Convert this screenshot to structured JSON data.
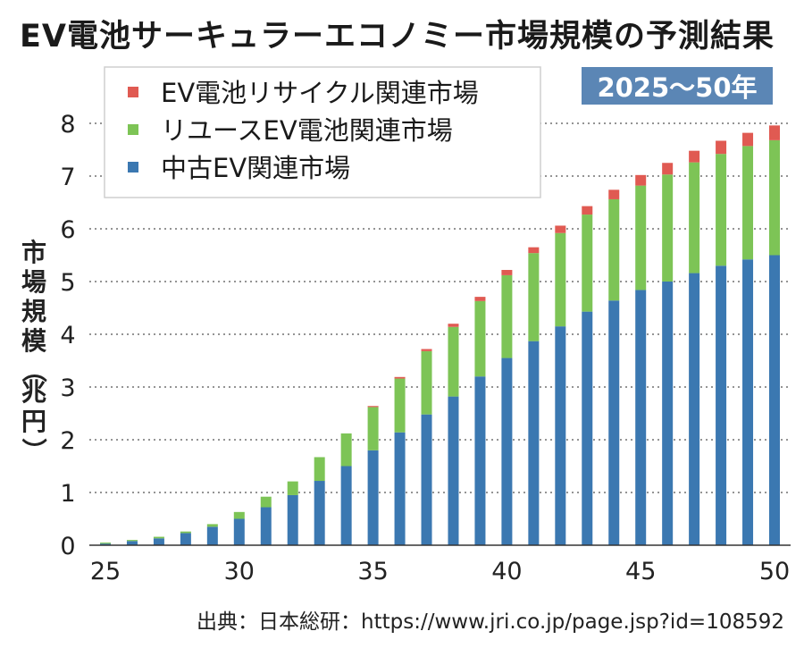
{
  "title": "EV電池サーキュラーエコノミー市場規模の予測結果",
  "period_badge": "2025〜50年",
  "source": "出典：日本総研：https://www.jri.co.jp/page.jsp?id=108592",
  "colors": {
    "used_ev": "#3b78b1",
    "reuse": "#7dc456",
    "recycle": "#e05a52",
    "grid": "#555555"
  },
  "chart_data": {
    "type": "bar",
    "stacked": true,
    "title": "EV電池サーキュラーエコノミー市場規模の予測結果",
    "ylabel": "市場規模（兆円）",
    "xlabel": "",
    "ylim": [
      0,
      8
    ],
    "yticks": [
      0,
      1,
      2,
      3,
      4,
      5,
      6,
      7,
      8
    ],
    "xticks": [
      25,
      30,
      35,
      40,
      45,
      50
    ],
    "grid": "horizontal-dotted",
    "legend_position": "top-left",
    "categories": [
      25,
      26,
      27,
      28,
      29,
      30,
      31,
      32,
      33,
      34,
      35,
      36,
      37,
      38,
      39,
      40,
      41,
      42,
      43,
      44,
      45,
      46,
      47,
      48,
      49,
      50
    ],
    "series": [
      {
        "name": "中古EV関連市場",
        "color_key": "used_ev",
        "values": [
          0.03,
          0.08,
          0.13,
          0.23,
          0.35,
          0.5,
          0.72,
          0.95,
          1.22,
          1.5,
          1.8,
          2.14,
          2.48,
          2.82,
          3.2,
          3.55,
          3.87,
          4.15,
          4.43,
          4.64,
          4.84,
          5.0,
          5.16,
          5.3,
          5.42,
          5.5
        ]
      },
      {
        "name": "リユースEV電池関連市場",
        "color_key": "reuse",
        "values": [
          0.02,
          0.02,
          0.03,
          0.03,
          0.05,
          0.13,
          0.2,
          0.26,
          0.45,
          0.62,
          0.82,
          1.02,
          1.2,
          1.32,
          1.43,
          1.57,
          1.67,
          1.77,
          1.84,
          1.92,
          1.98,
          2.03,
          2.1,
          2.12,
          2.15,
          2.18
        ]
      },
      {
        "name": "EV電池リサイクル関連市場",
        "color_key": "recycle",
        "values": [
          0,
          0,
          0,
          0,
          0,
          0,
          0,
          0,
          0,
          0,
          0.02,
          0.03,
          0.04,
          0.06,
          0.08,
          0.1,
          0.11,
          0.14,
          0.16,
          0.18,
          0.2,
          0.22,
          0.22,
          0.25,
          0.25,
          0.28
        ]
      }
    ],
    "legend": [
      "EV電池リサイクル関連市場",
      "リユースEV電池関連市場",
      "中古EV関連市場"
    ]
  }
}
